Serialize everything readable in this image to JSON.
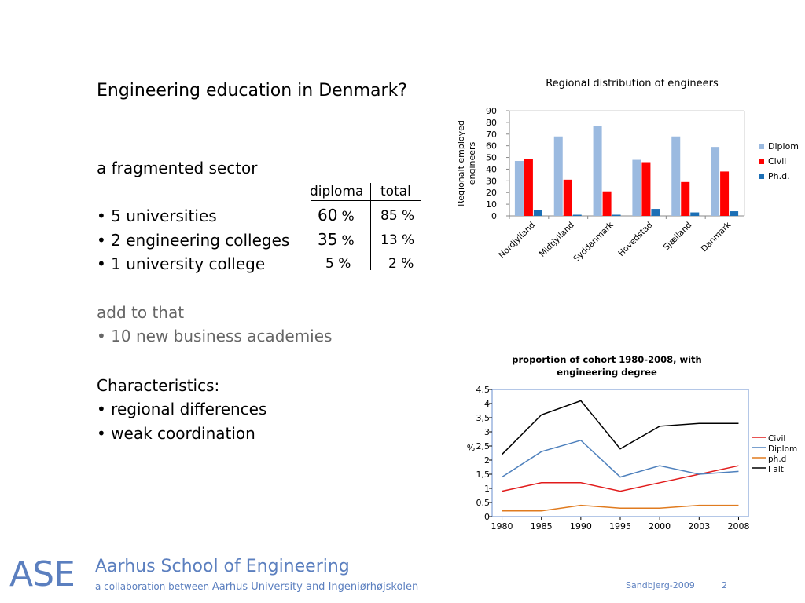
{
  "slide": {
    "title": "Engineering education in Denmark?",
    "sector_heading": "a fragmented sector",
    "col_diploma": "diploma",
    "col_total": "total",
    "rows": [
      {
        "label": "5 universities",
        "diploma_num": "60",
        "pct_sign": "%",
        "total": "85 %"
      },
      {
        "label": "2 engineering colleges",
        "diploma_num": "35",
        "pct_sign": "%",
        "total": "13 %"
      },
      {
        "label": "1 university college",
        "diploma": "5 %",
        "total": "2 %"
      }
    ],
    "add_heading": "add to that",
    "add_item": "10 new business academies",
    "char_heading": "Characteristics:",
    "char_items": [
      "regional differences",
      "weak coordination"
    ]
  },
  "footer": {
    "logo": "ASE",
    "school": "Aarhus School of Engineering",
    "collab_prefix": "a collaboration between",
    "collab_names": "Aarhus University and Ingeniørhøjskolen",
    "date": "Sandbjerg-2009",
    "page": "2"
  },
  "chart_data": [
    {
      "type": "bar",
      "title": "Regional distribution of engineers",
      "ylabel": "Regionalt employed engineers",
      "xlabel": "",
      "categories": [
        "Nordjylland",
        "Midtjylland",
        "Syddanmark",
        "Hovedstad",
        "Sjælland",
        "Danmark"
      ],
      "series": [
        {
          "name": "Diplom",
          "values": [
            47,
            68,
            77,
            48,
            68,
            59
          ],
          "color": "#9bbae0"
        },
        {
          "name": "Civil",
          "values": [
            49,
            31,
            21,
            46,
            29,
            38
          ],
          "color": "#ff0000"
        },
        {
          "name": "Ph.d.",
          "values": [
            5,
            1,
            1,
            6,
            3,
            4
          ],
          "color": "#1c6fb5"
        }
      ],
      "ylim": [
        0,
        90
      ],
      "yticks": [
        "0",
        "10",
        "20",
        "30",
        "40",
        "50",
        "60",
        "70",
        "80",
        "90"
      ],
      "legend": "right",
      "grid": false
    },
    {
      "type": "line",
      "title": "proportion of cohort 1980-2008, with engineering degree",
      "ylabel": "%",
      "xlabel": "",
      "x": [
        "1980",
        "1985",
        "1990",
        "1995",
        "2000",
        "2003",
        "2008"
      ],
      "series": [
        {
          "name": "Civil",
          "values": [
            0.9,
            1.2,
            1.2,
            0.9,
            1.2,
            1.5,
            1.8
          ],
          "color": "#e11b1b"
        },
        {
          "name": "Diplom",
          "values": [
            1.4,
            2.3,
            2.7,
            1.4,
            1.8,
            1.5,
            1.6
          ],
          "color": "#4f81bd"
        },
        {
          "name": "ph.d",
          "values": [
            0.2,
            0.2,
            0.4,
            0.3,
            0.3,
            0.4,
            0.4
          ],
          "color": "#e07b1f"
        },
        {
          "name": "I alt",
          "values": [
            2.2,
            3.6,
            4.1,
            2.4,
            3.2,
            3.3,
            3.3
          ],
          "color": "#000000"
        }
      ],
      "ylim": [
        0,
        4.5
      ],
      "yticks": [
        "0",
        "0,5",
        "1",
        "1,5",
        "2",
        "2,5",
        "3",
        "3,5",
        "4",
        "4,5"
      ],
      "legend": "right",
      "grid": false
    }
  ]
}
